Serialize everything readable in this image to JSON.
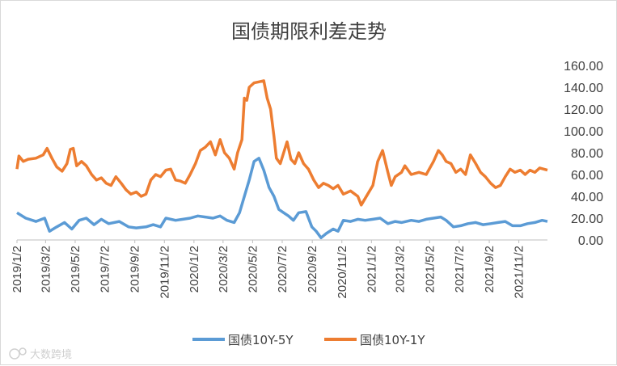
{
  "chart_data": {
    "type": "line",
    "title": "国债期限利差走势",
    "ylim": [
      0,
      160
    ],
    "y_ticks": [
      "0.00",
      "20.00",
      "40.00",
      "60.00",
      "80.00",
      "100.00",
      "120.00",
      "140.00",
      "160.00"
    ],
    "x_range": [
      "2019-01-02",
      "2021-12-31"
    ],
    "x_ticks": [
      {
        "label": "2019/1/2",
        "date": "2019-01-02"
      },
      {
        "label": "2019/3/2",
        "date": "2019-03-02"
      },
      {
        "label": "2019/5/2",
        "date": "2019-05-02"
      },
      {
        "label": "2019/7/2",
        "date": "2019-07-02"
      },
      {
        "label": "2019/9/2",
        "date": "2019-09-02"
      },
      {
        "label": "2019/11/2",
        "date": "2019-11-02"
      },
      {
        "label": "2020/1/2",
        "date": "2020-01-02"
      },
      {
        "label": "2020/3/2",
        "date": "2020-03-02"
      },
      {
        "label": "2020/5/2",
        "date": "2020-05-02"
      },
      {
        "label": "2020/7/2",
        "date": "2020-07-02"
      },
      {
        "label": "2020/9/2",
        "date": "2020-09-02"
      },
      {
        "label": "2020/11/2",
        "date": "2020-11-02"
      },
      {
        "label": "2021/1/2",
        "date": "2021-01-02"
      },
      {
        "label": "2021/3/2",
        "date": "2021-03-02"
      },
      {
        "label": "2021/5/2",
        "date": "2021-05-02"
      },
      {
        "label": "2021/7/2",
        "date": "2021-07-02"
      },
      {
        "label": "2021/9/2",
        "date": "2021-09-02"
      },
      {
        "label": "2021/11/2",
        "date": "2021-11-02"
      }
    ],
    "grid": false,
    "legend_position": "bottom",
    "series": [
      {
        "name": "国债10Y-5Y",
        "color": "#5b9bd5",
        "points": [
          [
            "2019-01-02",
            25
          ],
          [
            "2019-01-20",
            20
          ],
          [
            "2019-02-10",
            17
          ],
          [
            "2019-02-28",
            20
          ],
          [
            "2019-03-10",
            8
          ],
          [
            "2019-03-25",
            12
          ],
          [
            "2019-04-10",
            16
          ],
          [
            "2019-04-25",
            10
          ],
          [
            "2019-05-10",
            18
          ],
          [
            "2019-05-25",
            20
          ],
          [
            "2019-06-10",
            14
          ],
          [
            "2019-06-25",
            19
          ],
          [
            "2019-07-10",
            15
          ],
          [
            "2019-08-01",
            17
          ],
          [
            "2019-08-20",
            12
          ],
          [
            "2019-09-05",
            11
          ],
          [
            "2019-09-25",
            12
          ],
          [
            "2019-10-10",
            14
          ],
          [
            "2019-10-25",
            12
          ],
          [
            "2019-11-05",
            20
          ],
          [
            "2019-11-25",
            18
          ],
          [
            "2019-12-10",
            19
          ],
          [
            "2019-12-25",
            20
          ],
          [
            "2020-01-10",
            22
          ],
          [
            "2020-01-25",
            21
          ],
          [
            "2020-02-10",
            20
          ],
          [
            "2020-02-25",
            22
          ],
          [
            "2020-03-10",
            18
          ],
          [
            "2020-03-25",
            16
          ],
          [
            "2020-04-05",
            25
          ],
          [
            "2020-04-15",
            40
          ],
          [
            "2020-04-25",
            55
          ],
          [
            "2020-05-05",
            72
          ],
          [
            "2020-05-15",
            75
          ],
          [
            "2020-05-25",
            64
          ],
          [
            "2020-06-05",
            48
          ],
          [
            "2020-06-15",
            40
          ],
          [
            "2020-06-25",
            28
          ],
          [
            "2020-07-05",
            25
          ],
          [
            "2020-07-15",
            22
          ],
          [
            "2020-07-25",
            18
          ],
          [
            "2020-08-05",
            25
          ],
          [
            "2020-08-20",
            26
          ],
          [
            "2020-09-01",
            12
          ],
          [
            "2020-09-10",
            8
          ],
          [
            "2020-09-20",
            2
          ],
          [
            "2020-10-01",
            6
          ],
          [
            "2020-10-15",
            10
          ],
          [
            "2020-10-25",
            8
          ],
          [
            "2020-11-05",
            18
          ],
          [
            "2020-11-20",
            17
          ],
          [
            "2020-12-05",
            19
          ],
          [
            "2020-12-20",
            18
          ],
          [
            "2021-01-05",
            19
          ],
          [
            "2021-01-20",
            20
          ],
          [
            "2021-02-05",
            15
          ],
          [
            "2021-02-20",
            17
          ],
          [
            "2021-03-05",
            16
          ],
          [
            "2021-03-25",
            18
          ],
          [
            "2021-04-10",
            17
          ],
          [
            "2021-04-25",
            19
          ],
          [
            "2021-05-10",
            20
          ],
          [
            "2021-05-25",
            21
          ],
          [
            "2021-06-05",
            18
          ],
          [
            "2021-06-20",
            12
          ],
          [
            "2021-07-05",
            13
          ],
          [
            "2021-07-20",
            15
          ],
          [
            "2021-08-05",
            16
          ],
          [
            "2021-08-20",
            14
          ],
          [
            "2021-09-05",
            15
          ],
          [
            "2021-09-20",
            16
          ],
          [
            "2021-10-05",
            17
          ],
          [
            "2021-10-20",
            13
          ],
          [
            "2021-11-05",
            13
          ],
          [
            "2021-11-20",
            15
          ],
          [
            "2021-12-05",
            16
          ],
          [
            "2021-12-20",
            18
          ],
          [
            "2021-12-31",
            17
          ]
        ]
      },
      {
        "name": "国债10Y-1Y",
        "color": "#ed7d31",
        "points": [
          [
            "2019-01-02",
            65
          ],
          [
            "2019-01-06",
            77
          ],
          [
            "2019-01-15",
            72
          ],
          [
            "2019-01-25",
            74
          ],
          [
            "2019-02-10",
            75
          ],
          [
            "2019-02-25",
            78
          ],
          [
            "2019-03-05",
            84
          ],
          [
            "2019-03-15",
            75
          ],
          [
            "2019-03-25",
            67
          ],
          [
            "2019-04-05",
            63
          ],
          [
            "2019-04-15",
            70
          ],
          [
            "2019-04-22",
            83
          ],
          [
            "2019-04-28",
            84
          ],
          [
            "2019-05-05",
            68
          ],
          [
            "2019-05-15",
            72
          ],
          [
            "2019-05-25",
            68
          ],
          [
            "2019-06-05",
            60
          ],
          [
            "2019-06-15",
            55
          ],
          [
            "2019-06-25",
            57
          ],
          [
            "2019-07-05",
            52
          ],
          [
            "2019-07-15",
            50
          ],
          [
            "2019-07-25",
            58
          ],
          [
            "2019-08-05",
            52
          ],
          [
            "2019-08-15",
            46
          ],
          [
            "2019-08-25",
            42
          ],
          [
            "2019-09-05",
            44
          ],
          [
            "2019-09-15",
            40
          ],
          [
            "2019-09-25",
            42
          ],
          [
            "2019-10-05",
            55
          ],
          [
            "2019-10-15",
            60
          ],
          [
            "2019-10-25",
            58
          ],
          [
            "2019-11-05",
            64
          ],
          [
            "2019-11-15",
            65
          ],
          [
            "2019-11-25",
            55
          ],
          [
            "2019-12-05",
            54
          ],
          [
            "2019-12-15",
            52
          ],
          [
            "2019-12-25",
            60
          ],
          [
            "2020-01-05",
            70
          ],
          [
            "2020-01-15",
            82
          ],
          [
            "2020-01-25",
            85
          ],
          [
            "2020-02-05",
            90
          ],
          [
            "2020-02-15",
            78
          ],
          [
            "2020-02-25",
            92
          ],
          [
            "2020-03-05",
            80
          ],
          [
            "2020-03-15",
            75
          ],
          [
            "2020-03-25",
            65
          ],
          [
            "2020-04-01",
            80
          ],
          [
            "2020-04-10",
            92
          ],
          [
            "2020-04-15",
            130
          ],
          [
            "2020-04-20",
            128
          ],
          [
            "2020-04-25",
            140
          ],
          [
            "2020-05-05",
            144
          ],
          [
            "2020-05-15",
            145
          ],
          [
            "2020-05-25",
            146
          ],
          [
            "2020-06-01",
            130
          ],
          [
            "2020-06-08",
            120
          ],
          [
            "2020-06-15",
            95
          ],
          [
            "2020-06-20",
            75
          ],
          [
            "2020-06-28",
            70
          ],
          [
            "2020-07-05",
            80
          ],
          [
            "2020-07-12",
            90
          ],
          [
            "2020-07-20",
            74
          ],
          [
            "2020-07-28",
            70
          ],
          [
            "2020-08-05",
            80
          ],
          [
            "2020-08-15",
            70
          ],
          [
            "2020-08-25",
            65
          ],
          [
            "2020-09-05",
            55
          ],
          [
            "2020-09-15",
            48
          ],
          [
            "2020-09-25",
            52
          ],
          [
            "2020-10-05",
            50
          ],
          [
            "2020-10-15",
            47
          ],
          [
            "2020-10-25",
            50
          ],
          [
            "2020-11-05",
            42
          ],
          [
            "2020-11-20",
            45
          ],
          [
            "2020-12-05",
            40
          ],
          [
            "2020-12-12",
            32
          ],
          [
            "2020-12-20",
            38
          ],
          [
            "2021-01-05",
            50
          ],
          [
            "2021-01-15",
            72
          ],
          [
            "2021-01-25",
            82
          ],
          [
            "2021-02-05",
            62
          ],
          [
            "2021-02-12",
            50
          ],
          [
            "2021-02-20",
            58
          ],
          [
            "2021-03-05",
            62
          ],
          [
            "2021-03-12",
            68
          ],
          [
            "2021-03-25",
            60
          ],
          [
            "2021-04-10",
            62
          ],
          [
            "2021-04-25",
            60
          ],
          [
            "2021-05-10",
            72
          ],
          [
            "2021-05-20",
            82
          ],
          [
            "2021-05-28",
            78
          ],
          [
            "2021-06-05",
            72
          ],
          [
            "2021-06-15",
            70
          ],
          [
            "2021-06-25",
            62
          ],
          [
            "2021-07-05",
            65
          ],
          [
            "2021-07-15",
            60
          ],
          [
            "2021-07-25",
            78
          ],
          [
            "2021-08-05",
            70
          ],
          [
            "2021-08-15",
            62
          ],
          [
            "2021-08-25",
            58
          ],
          [
            "2021-09-05",
            52
          ],
          [
            "2021-09-15",
            48
          ],
          [
            "2021-09-25",
            50
          ],
          [
            "2021-10-05",
            58
          ],
          [
            "2021-10-15",
            65
          ],
          [
            "2021-10-25",
            62
          ],
          [
            "2021-11-05",
            64
          ],
          [
            "2021-11-15",
            60
          ],
          [
            "2021-11-25",
            64
          ],
          [
            "2021-12-05",
            62
          ],
          [
            "2021-12-15",
            66
          ],
          [
            "2021-12-31",
            64
          ]
        ]
      }
    ]
  },
  "watermark": {
    "icon": "logo-icon",
    "text": "大数跨境"
  }
}
